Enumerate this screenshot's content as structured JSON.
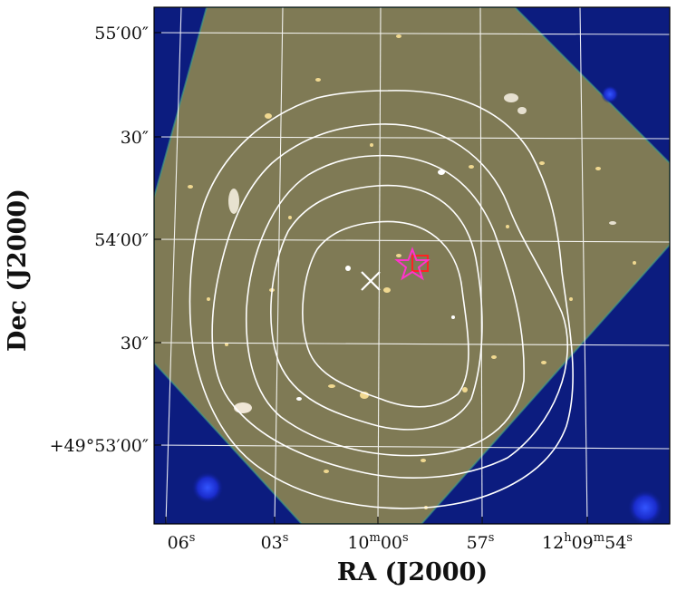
{
  "figure": {
    "xlabel": "RA (J2000)",
    "ylabel": "Dec (J2000)",
    "x_ticks": [
      {
        "label": "06",
        "sup": "s"
      },
      {
        "label": "03",
        "sup": "s"
      },
      {
        "label": "10",
        "sup": "m",
        "label2": "00",
        "sup2": "s"
      },
      {
        "label": "57",
        "sup": "s"
      },
      {
        "label": "12",
        "sup": "h",
        "label2": "09",
        "sup2": "m",
        "label3": "54",
        "sup3": "s"
      }
    ],
    "y_ticks": [
      "55′00″",
      "30″",
      "54′00″",
      "30″",
      "+49°53′00″"
    ],
    "colors": {
      "background_sky": "#0a1a7a",
      "image_field": "#7f7a55",
      "contour": "#ffffff",
      "grid": "#ffffff",
      "star_marker": "#ff33cc",
      "square_marker": "#ff2222",
      "cross_marker": "#ffffff"
    },
    "markers": [
      "x-cross-icon",
      "star-icon",
      "square-icon"
    ]
  }
}
